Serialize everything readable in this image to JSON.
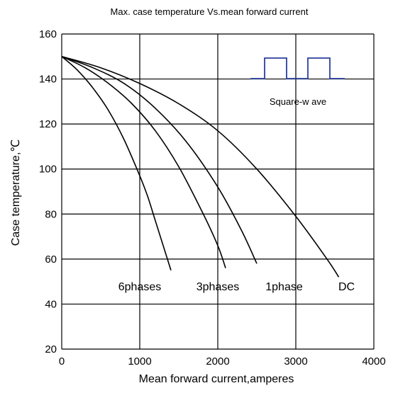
{
  "chart_data": {
    "type": "line",
    "title": "Max. case temperature Vs.mean forward current",
    "xlabel": "Mean forward  current,amperes",
    "ylabel": "Case temperature,℃",
    "xlim": [
      0,
      4000
    ],
    "ylim": [
      20,
      160
    ],
    "xticks": [
      0,
      1000,
      2000,
      3000,
      4000
    ],
    "yticks": [
      20,
      40,
      60,
      80,
      100,
      120,
      140,
      160
    ],
    "grid": true,
    "legend": "none",
    "series": [
      {
        "name": "6phases",
        "label_at": [
          1000,
          48
        ],
        "points": [
          [
            0,
            150
          ],
          [
            200,
            144
          ],
          [
            400,
            136
          ],
          [
            600,
            126
          ],
          [
            800,
            113
          ],
          [
            1000,
            97
          ],
          [
            1100,
            88
          ],
          [
            1200,
            77
          ],
          [
            1300,
            66
          ],
          [
            1400,
            55
          ]
        ]
      },
      {
        "name": "3phases",
        "label_at": [
          2000,
          48
        ],
        "points": [
          [
            0,
            150
          ],
          [
            300,
            145
          ],
          [
            600,
            138
          ],
          [
            900,
            129
          ],
          [
            1200,
            117
          ],
          [
            1500,
            101
          ],
          [
            1800,
            81
          ],
          [
            2000,
            66
          ],
          [
            2100,
            56
          ]
        ]
      },
      {
        "name": "1phase",
        "label_at": [
          2850,
          48
        ],
        "points": [
          [
            0,
            150
          ],
          [
            400,
            145
          ],
          [
            800,
            138
          ],
          [
            1200,
            127
          ],
          [
            1600,
            112
          ],
          [
            2000,
            92
          ],
          [
            2300,
            73
          ],
          [
            2500,
            58
          ]
        ]
      },
      {
        "name": "DC",
        "label_at": [
          3650,
          48
        ],
        "points": [
          [
            0,
            150
          ],
          [
            500,
            145
          ],
          [
            1000,
            138
          ],
          [
            1500,
            129
          ],
          [
            2000,
            117
          ],
          [
            2500,
            100
          ],
          [
            3000,
            79
          ],
          [
            3400,
            60
          ],
          [
            3550,
            52
          ]
        ]
      }
    ],
    "annotation": {
      "text": "Square-w ave",
      "waveform_color": "#2b3f9e"
    }
  }
}
